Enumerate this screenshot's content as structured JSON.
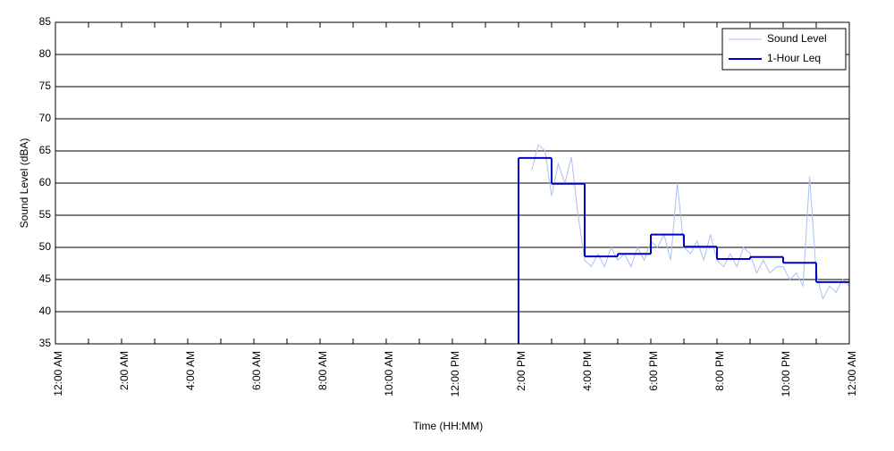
{
  "chart_data": {
    "type": "line",
    "ylabel": "Sound Level (dBA)",
    "xlabel": "Time (HH:MM)",
    "xlim": [
      0,
      24
    ],
    "ylim": [
      35,
      85
    ],
    "yticks": [
      35,
      40,
      45,
      50,
      55,
      60,
      65,
      70,
      75,
      80,
      85
    ],
    "xticks": [
      {
        "value": 0,
        "label": "12:00 AM"
      },
      {
        "value": 2,
        "label": "2:00 AM"
      },
      {
        "value": 4,
        "label": "4:00 AM"
      },
      {
        "value": 6,
        "label": "6:00 AM"
      },
      {
        "value": 8,
        "label": "8:00 AM"
      },
      {
        "value": 10,
        "label": "10:00 AM"
      },
      {
        "value": 12,
        "label": "12:00 PM"
      },
      {
        "value": 14,
        "label": "2:00 PM"
      },
      {
        "value": 16,
        "label": "4:00 PM"
      },
      {
        "value": 18,
        "label": "6:00 PM"
      },
      {
        "value": 20,
        "label": "8:00 PM"
      },
      {
        "value": 22,
        "label": "10:00 PM"
      },
      {
        "value": 24,
        "label": "12:00 AM"
      }
    ],
    "xminor_ticks": [
      1,
      3,
      5,
      7,
      9,
      11,
      13,
      15,
      17,
      19,
      21,
      23
    ],
    "grid": true,
    "legend": "upper-right",
    "series": [
      {
        "name": "Sound Level",
        "color": "#a9c0f2",
        "style": "line",
        "x": [
          14.4,
          14.6,
          14.8,
          15.0,
          15.2,
          15.4,
          15.6,
          15.8,
          16.0,
          16.2,
          16.4,
          16.6,
          16.8,
          17.0,
          17.2,
          17.4,
          17.6,
          17.8,
          18.0,
          18.2,
          18.4,
          18.6,
          18.8,
          19.0,
          19.2,
          19.4,
          19.6,
          19.8,
          20.0,
          20.2,
          20.4,
          20.6,
          20.8,
          21.0,
          21.2,
          21.4,
          21.6,
          21.8,
          22.0,
          22.2,
          22.4,
          22.6,
          22.8,
          23.0,
          23.2,
          23.4,
          23.6,
          23.8,
          24.0
        ],
        "values": [
          62,
          66,
          65,
          58,
          63,
          60,
          64,
          55,
          48,
          47,
          49,
          47,
          50,
          48,
          49,
          47,
          50,
          48,
          51,
          50,
          52,
          48,
          60,
          50,
          49,
          51,
          48,
          52,
          48,
          47,
          49,
          47,
          50,
          49,
          46,
          48,
          46,
          47,
          47,
          45,
          46,
          44,
          61,
          46,
          42,
          44,
          43,
          45,
          44
        ]
      },
      {
        "name": "1-Hour Leq",
        "color": "#0000cc",
        "style": "step",
        "x": [
          14,
          15,
          16,
          17,
          18,
          19,
          20,
          21,
          22,
          23
        ],
        "values": [
          63.9,
          59.9,
          48.6,
          49.0,
          52.0,
          50.1,
          48.2,
          48.5,
          47.6,
          44.6
        ]
      }
    ]
  }
}
